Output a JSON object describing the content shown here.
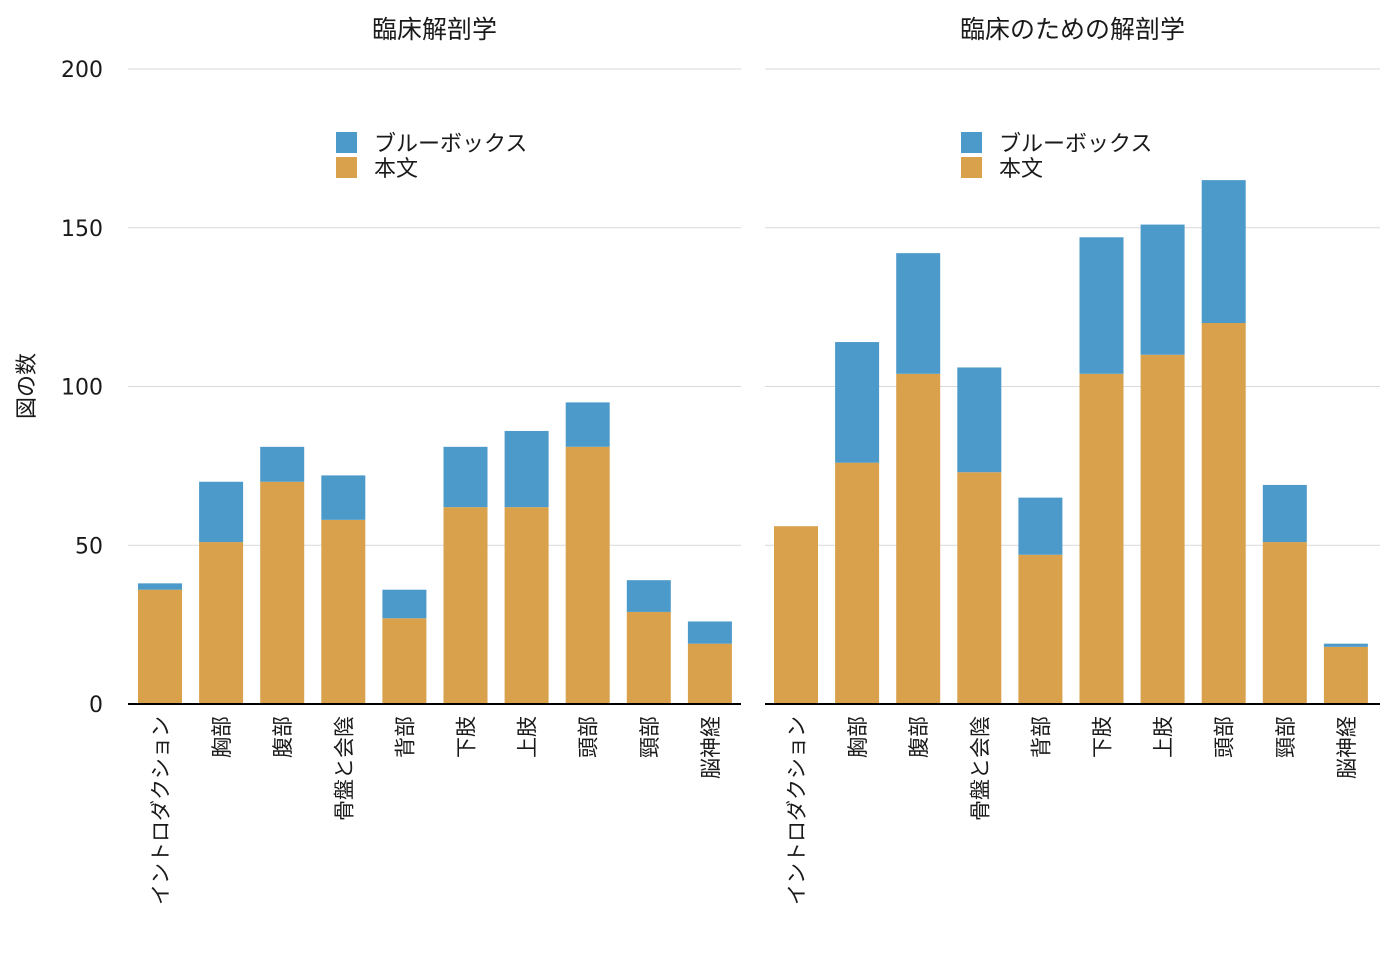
{
  "chart_data": {
    "type": "bar",
    "stacked": true,
    "ylabel": "図の数",
    "ylim": [
      0,
      200
    ],
    "yticks": [
      0,
      50,
      100,
      150,
      200
    ],
    "colors": {
      "本文": "#d9a14b",
      "ブルーボックス": "#4c9ac9"
    },
    "grid": true,
    "legend_position": "top-center",
    "categories": [
      "イントロダクション",
      "胸部",
      "腹部",
      "骨盤と会陰",
      "背部",
      "下肢",
      "上肢",
      "頭部",
      "頸部",
      "脳神経"
    ],
    "panels": [
      {
        "title": "臨床解剖学",
        "legend": [
          "ブルーボックス",
          "本文"
        ],
        "series": [
          {
            "name": "本文",
            "values": [
              36,
              51,
              70,
              58,
              27,
              62,
              62,
              81,
              29,
              19
            ]
          },
          {
            "name": "ブルーボックス",
            "values": [
              2,
              19,
              11,
              14,
              9,
              19,
              24,
              14,
              10,
              7
            ]
          }
        ]
      },
      {
        "title": "臨床のための解剖学",
        "legend": [
          "ブルーボックス",
          "本文"
        ],
        "series": [
          {
            "name": "本文",
            "values": [
              56,
              76,
              104,
              73,
              47,
              104,
              110,
              120,
              51,
              18
            ]
          },
          {
            "name": "ブルーボックス",
            "values": [
              0,
              38,
              38,
              33,
              18,
              43,
              41,
              45,
              18,
              1
            ]
          }
        ]
      }
    ]
  }
}
